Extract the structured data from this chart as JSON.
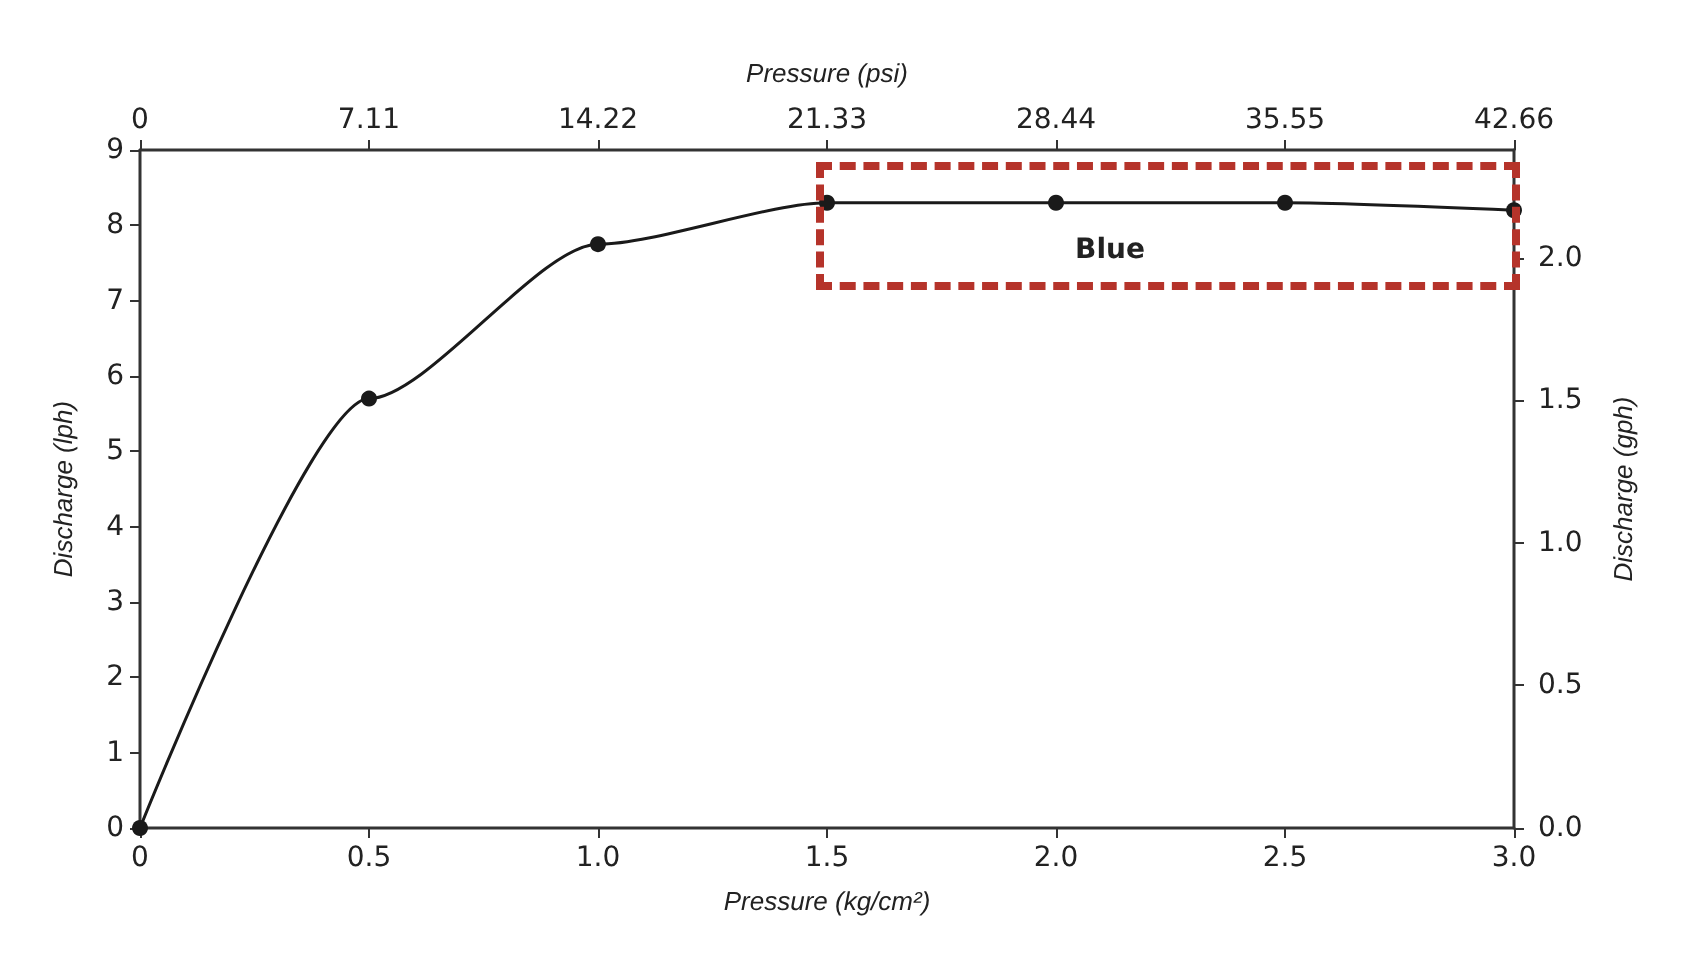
{
  "chart_data": {
    "type": "line",
    "xlabel": "Pressure (kg/cm²)",
    "ylabel": "Discharge (lph)",
    "x2label": "Pressure (psi)",
    "y2label": "Discharge (gph)",
    "x": [
      0,
      0.5,
      1,
      1.5,
      2,
      2.5,
      3
    ],
    "series": [
      {
        "color": "#1a1a1a",
        "values": [
          0,
          5.7,
          7.75,
          8.3,
          8.3,
          8.3,
          8.2
        ]
      }
    ],
    "xlim": [
      0,
      3
    ],
    "xticks": [
      0,
      0.5,
      {
        "value": 1,
        "label": "1.0"
      },
      1.5,
      {
        "value": 2,
        "label": "2.0"
      },
      2.5,
      {
        "value": 3,
        "label": "3.0"
      }
    ],
    "ylim": [
      0,
      9
    ],
    "yticks": [
      0,
      1,
      2,
      3,
      4,
      5,
      6,
      7,
      8,
      9
    ],
    "x2lim": [
      0,
      42.66
    ],
    "x2ticks": [
      0,
      7.11,
      14.22,
      21.33,
      28.44,
      35.55,
      42.66
    ],
    "y2lim": [
      0,
      2.378
    ],
    "y2ticks": [
      {
        "value": 0,
        "label": "0.0"
      },
      0.5,
      {
        "value": 1,
        "label": "1.0"
      },
      1.5,
      {
        "value": 2,
        "label": "2.0"
      }
    ],
    "annotations": [
      "Blue"
    ],
    "marker": "circle",
    "line_style": "solid",
    "grid": false
  }
}
